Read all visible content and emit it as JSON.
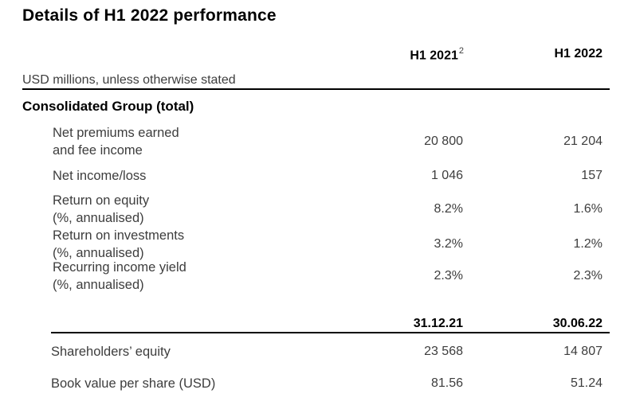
{
  "page": {
    "title": "Details of H1 2022 performance",
    "subtitle": "USD millions, unless otherwise stated"
  },
  "period_headers": {
    "col1": "H1 2021",
    "col1_footnote": "2",
    "col2": "H1 2022"
  },
  "section": {
    "heading": "Consolidated Group (total)",
    "rows": [
      {
        "label_line1": "Net premiums earned",
        "label_line2": "and fee income",
        "h1_2021": "20 800",
        "h1_2022": "21 204"
      },
      {
        "label_line1": "Net income/loss",
        "label_line2": "",
        "h1_2021": "1 046",
        "h1_2022": "157"
      },
      {
        "label_line1": "Return on equity",
        "label_line2": "(%, annualised)",
        "h1_2021": "8.2%",
        "h1_2022": "1.6%"
      },
      {
        "label_line1": "Return on investments",
        "label_line2": "(%, annualised)",
        "h1_2021": "3.2%",
        "h1_2022": "1.2%"
      },
      {
        "label_line1": "Recurring income yield",
        "label_line2": "(%, annualised)",
        "h1_2021": "2.3%",
        "h1_2022": "2.3%"
      }
    ]
  },
  "balance_headers": {
    "col1": "31.12.21",
    "col2": "30.06.22"
  },
  "balance_rows": [
    {
      "label": "Shareholders’ equity",
      "col1": "23 568",
      "col2": "14 807"
    },
    {
      "label": "Book value per share (USD)",
      "col1": "81.56",
      "col2": "51.24"
    }
  ],
  "colors": {
    "text": "#3d3d3d",
    "heading": "#000000",
    "rule": "#000000",
    "background": "#ffffff"
  }
}
